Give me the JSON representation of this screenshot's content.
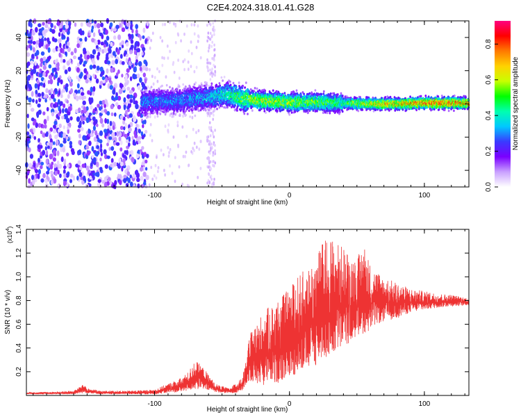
{
  "figure": {
    "title": "C2E4.2024.318.01.41.G28"
  },
  "chart_data": [
    {
      "type": "heatmap",
      "xlabel": "Height of straight line (km)",
      "ylabel": "Frequency (Hz)",
      "xlim": [
        -195,
        133
      ],
      "ylim": [
        -50,
        50
      ],
      "x_ticks": [
        -100,
        0,
        100
      ],
      "y_ticks": [
        -40,
        -20,
        0,
        20,
        40
      ],
      "colorbar": {
        "label": "Normalized spectral amplitude",
        "range": [
          0,
          0.93
        ],
        "ticks": [
          0.0,
          0.2,
          0.4,
          0.6,
          0.8
        ],
        "tick_labels": [
          "0.0",
          "0.2",
          "0.4",
          "0.6",
          "0.8"
        ],
        "colormap": [
          "#ffffff",
          "#c9a0ff",
          "#7a00ff",
          "#3a3aff",
          "#00c8ff",
          "#00ffb0",
          "#00ff00",
          "#c8ff00",
          "#ffd200",
          "#ff7a00",
          "#ff0000",
          "#ff0080"
        ]
      },
      "signal_band": {
        "x": [
          -110,
          -80,
          -60,
          -45,
          -35,
          -20,
          0,
          20,
          40,
          60,
          80,
          100,
          133
        ],
        "center_freq": [
          1,
          2,
          4,
          6,
          3,
          2,
          1,
          1,
          0.5,
          0,
          0,
          0.5,
          0.5
        ],
        "peak_amplitude": [
          0.35,
          0.35,
          0.4,
          0.5,
          0.6,
          0.7,
          0.65,
          0.6,
          0.55,
          0.75,
          0.8,
          0.9,
          0.85
        ]
      },
      "noise_region_x": [
        -195,
        -105
      ],
      "vertical_streak_x": -58
    },
    {
      "type": "line",
      "xlabel": "Height of straight line (km)",
      "ylabel": "SNR (10 * v/v)",
      "exponent_label": "(x10",
      "exponent_sup": "4",
      "exponent_close": ")",
      "xlim": [
        -195,
        133
      ],
      "ylim": [
        0,
        1.4
      ],
      "x_ticks": [
        -100,
        0,
        100
      ],
      "y_ticks": [
        0.2,
        0.4,
        0.6,
        0.8,
        1.0,
        1.2,
        1.4
      ],
      "y_tick_labels": [
        "0.2",
        "0.4",
        "0.6",
        "0.8",
        "1.0",
        "1.2",
        "1.4"
      ],
      "color": "#ee3333",
      "series": [
        {
          "x": [
            -195,
            -180,
            -160,
            -152,
            -150,
            -140,
            -120,
            -100,
            -90,
            -80,
            -75,
            -70,
            -65,
            -60,
            -55,
            -50,
            -45,
            -40,
            -35,
            -32,
            -30,
            -25,
            -20,
            -15,
            -10,
            -5,
            0,
            5,
            10,
            15,
            20,
            25,
            30,
            35,
            40,
            45,
            50,
            55,
            60,
            65,
            70,
            80,
            90,
            100,
            110,
            120,
            133
          ],
          "upper": [
            0.03,
            0.03,
            0.04,
            0.1,
            0.06,
            0.04,
            0.04,
            0.05,
            0.1,
            0.15,
            0.2,
            0.3,
            0.25,
            0.18,
            0.1,
            0.08,
            0.06,
            0.1,
            0.15,
            0.3,
            0.5,
            0.6,
            0.7,
            0.75,
            0.8,
            0.85,
            0.9,
            1.0,
            1.05,
            1.1,
            1.2,
            1.3,
            1.35,
            1.3,
            1.25,
            1.2,
            1.15,
            1.3,
            1.1,
            1.05,
            1.0,
            0.95,
            0.9,
            0.88,
            0.86,
            0.85,
            0.82
          ],
          "lower": [
            0.01,
            0.01,
            0.01,
            0.02,
            0.02,
            0.01,
            0.01,
            0.01,
            0.02,
            0.03,
            0.04,
            0.05,
            0.05,
            0.04,
            0.03,
            0.02,
            0.02,
            0.02,
            0.04,
            0.08,
            0.12,
            0.1,
            0.08,
            0.1,
            0.1,
            0.12,
            0.15,
            0.18,
            0.2,
            0.22,
            0.25,
            0.3,
            0.32,
            0.35,
            0.4,
            0.45,
            0.5,
            0.52,
            0.55,
            0.6,
            0.62,
            0.65,
            0.7,
            0.72,
            0.74,
            0.75,
            0.76
          ]
        }
      ]
    }
  ]
}
